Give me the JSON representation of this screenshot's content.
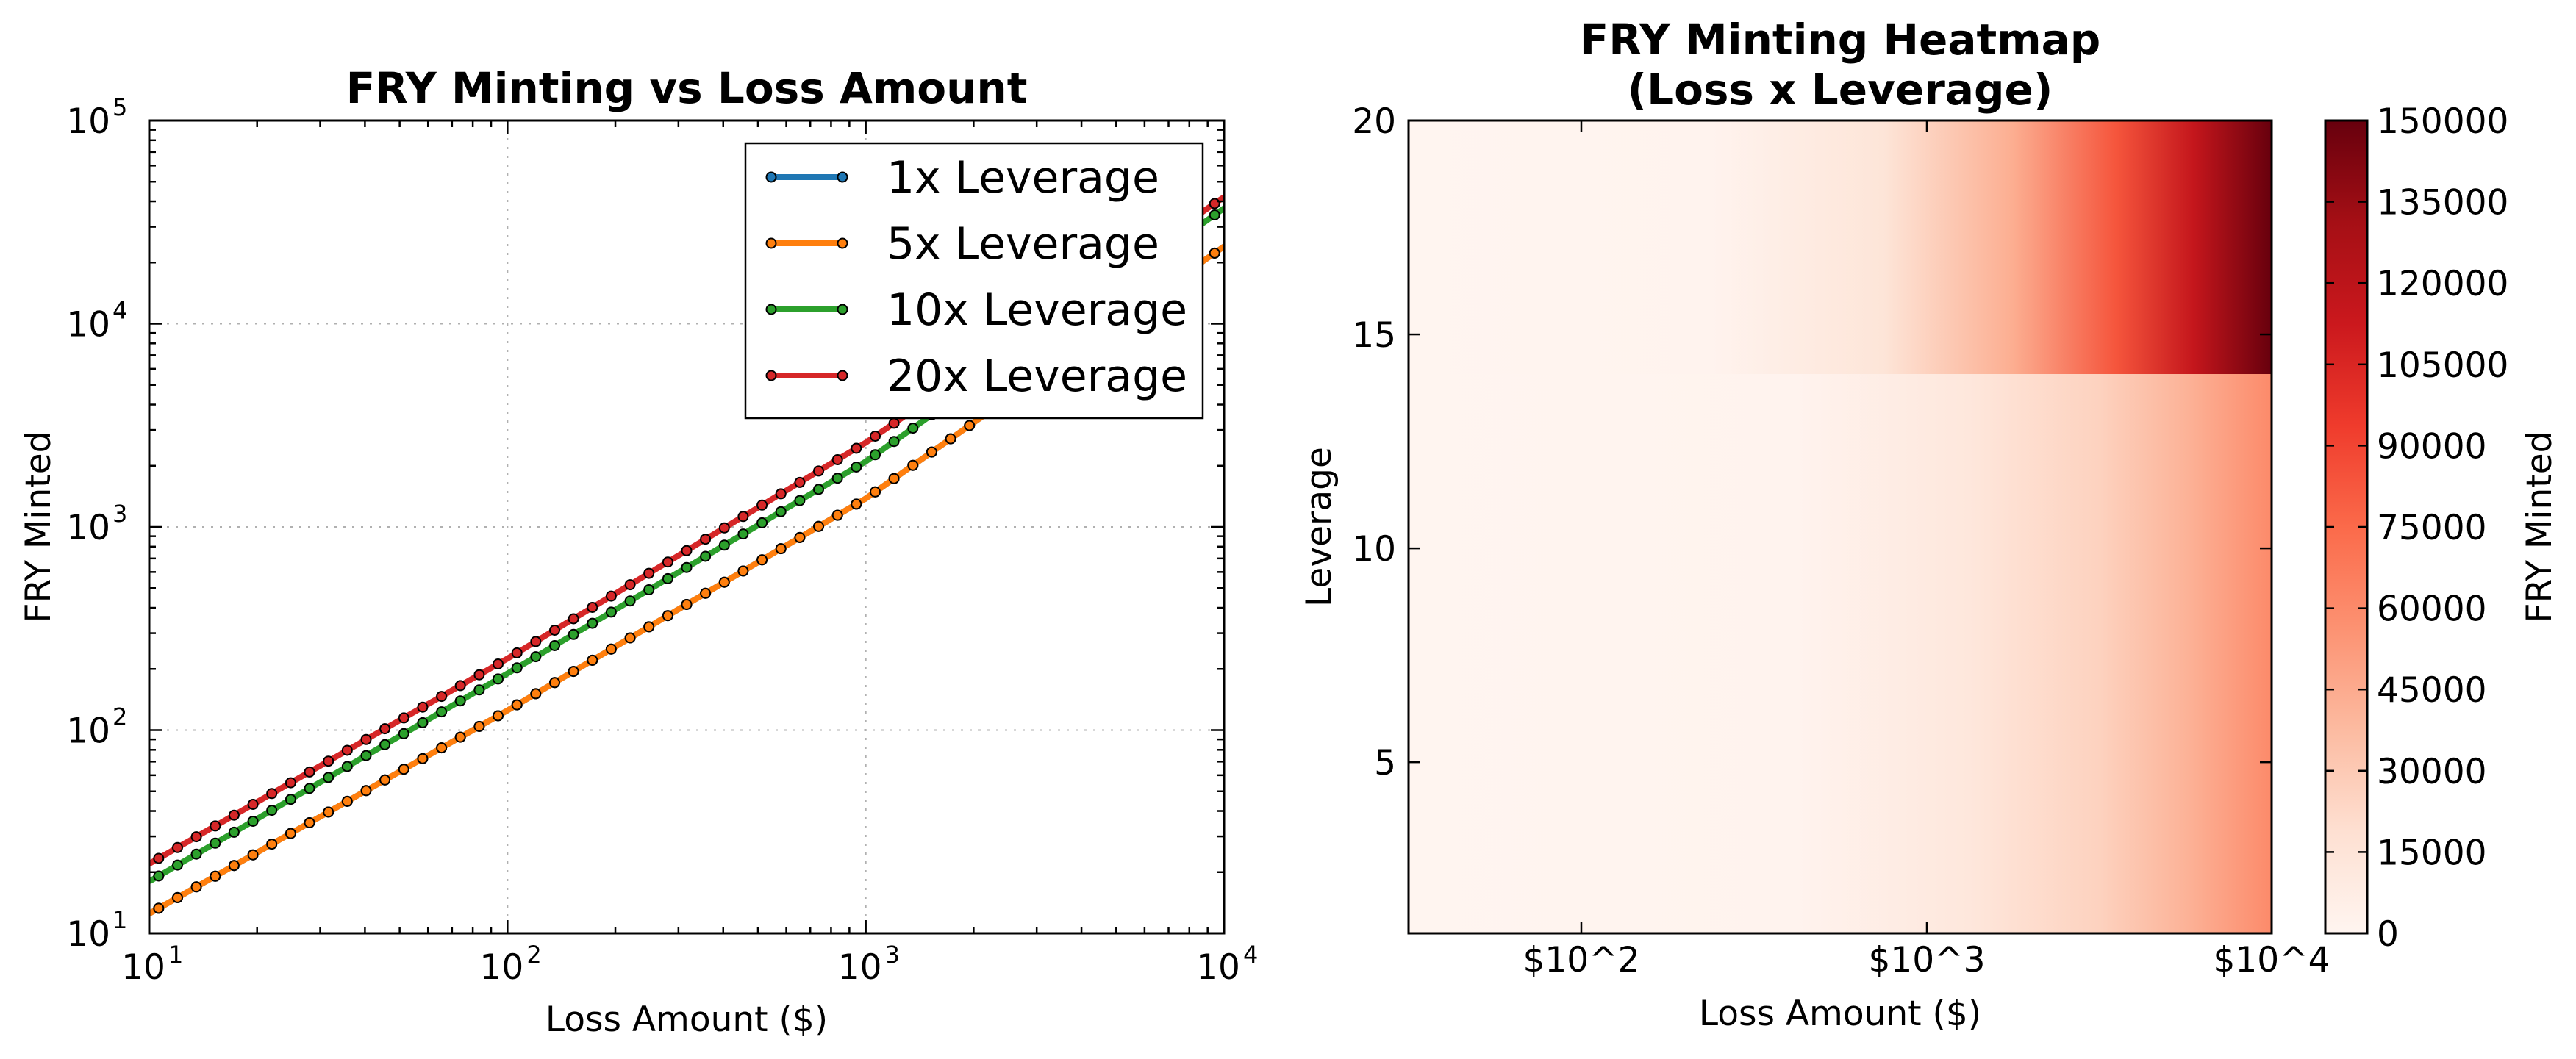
{
  "chart_data": [
    {
      "type": "line",
      "title": "FRY Minting vs Loss Amount",
      "xlabel": "Loss Amount ($)",
      "ylabel": "FRY Minted",
      "xscale": "log",
      "yscale": "log",
      "xlim": [
        10,
        10000
      ],
      "ylim": [
        10,
        100000
      ],
      "grid": true,
      "legend_position": "top-right",
      "x_ticks": [
        {
          "base": "10",
          "exp": "1"
        },
        {
          "base": "10",
          "exp": "2"
        },
        {
          "base": "10",
          "exp": "3"
        },
        {
          "base": "10",
          "exp": "4"
        }
      ],
      "y_ticks": [
        {
          "base": "10",
          "exp": "1"
        },
        {
          "base": "10",
          "exp": "2"
        },
        {
          "base": "10",
          "exp": "3"
        },
        {
          "base": "10",
          "exp": "4"
        },
        {
          "base": "10",
          "exp": "5"
        }
      ],
      "series": [
        {
          "name": "1x Leverage",
          "color": "#1f77b4",
          "x": [
            10,
            100,
            1000,
            10000
          ],
          "values": [
            12.5,
            125,
            1380,
            24000
          ]
        },
        {
          "name": "5x Leverage",
          "color": "#ff7f0e",
          "x": [
            10,
            100,
            1000,
            10000
          ],
          "values": [
            12.5,
            125,
            1380,
            24000
          ]
        },
        {
          "name": "10x Leverage",
          "color": "#2ca02c",
          "x": [
            10,
            100,
            1000,
            10000
          ],
          "values": [
            18,
            190,
            2100,
            37000
          ]
        },
        {
          "name": "20x Leverage",
          "color": "#d62728",
          "x": [
            10,
            100,
            1000,
            10000
          ],
          "values": [
            22,
            225,
            2600,
            42000
          ]
        }
      ]
    },
    {
      "type": "heatmap",
      "title_line1": "FRY Minting Heatmap",
      "title_line2": "(Loss x Leverage)",
      "xlabel": "Loss Amount ($)",
      "ylabel": "Leverage",
      "colorbar_label": "FRY Minted",
      "colormap": "Reds",
      "x_tick_labels": [
        "$10^2",
        "$10^3",
        "$10^4"
      ],
      "y_ticks": [
        "5",
        "10",
        "15",
        "20"
      ],
      "ylim": [
        1,
        20
      ],
      "colorbar_ticks": [
        "0",
        "15000",
        "30000",
        "45000",
        "60000",
        "75000",
        "90000",
        "105000",
        "120000",
        "135000",
        "150000"
      ],
      "vmin": 0,
      "vmax": 150000
    }
  ]
}
